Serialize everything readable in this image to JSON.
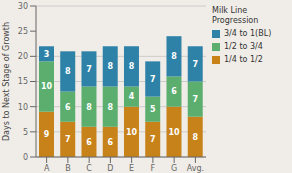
{
  "chart_data": {
    "type": "bar",
    "stacked": true,
    "data_labels": true,
    "grid": true,
    "legend": "right",
    "categories": [
      "A",
      "B",
      "C",
      "D",
      "E",
      "F",
      "G",
      "Avg."
    ],
    "series": [
      {
        "name": "1/4 to 1/2",
        "color": "#C8821A",
        "values": [
          9,
          7,
          6,
          6,
          10,
          7,
          10,
          8
        ]
      },
      {
        "name": "1/2 to 3/4",
        "color": "#5BAE6E",
        "values": [
          10,
          6,
          8,
          8,
          4,
          5,
          6,
          7
        ]
      },
      {
        "name": "3/4 to 1(BL)",
        "color": "#2E82A8",
        "values": [
          3,
          8,
          7,
          8,
          8,
          7,
          8,
          7
        ]
      }
    ],
    "ylabel": "Days to Next Stage of Growth",
    "legend_title": "Milk Line\nProgression",
    "ylim": [
      0,
      30
    ],
    "yticks": [
      0,
      5,
      10,
      15,
      20,
      25,
      30
    ]
  }
}
